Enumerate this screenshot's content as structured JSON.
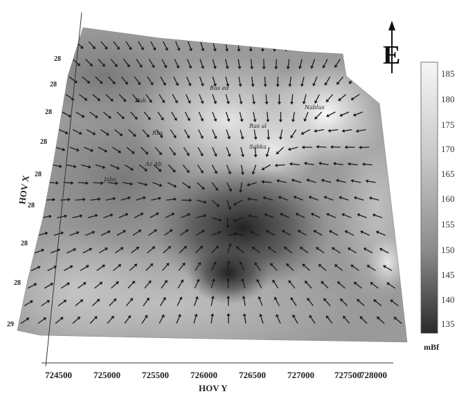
{
  "map": {
    "x_axis": {
      "title": "HOV Y",
      "ticks": [
        "724500",
        "725000",
        "725500",
        "726000",
        "726500",
        "727000",
        "727500",
        "728000"
      ]
    },
    "y_axis": {
      "title": "HOV X",
      "ticks": [
        "29",
        "28",
        "28",
        "28",
        "28",
        "28",
        "28",
        "28",
        "28"
      ]
    },
    "north_arrow": {
      "letter": "E",
      "icon": "north-arrow-icon"
    },
    "colorbar": {
      "unit": "mBf",
      "ticks": [
        "185",
        "180",
        "175",
        "170",
        "165",
        "160",
        "155",
        "150",
        "145",
        "140",
        "135"
      ],
      "min": 133,
      "max": 187,
      "colors": {
        "high": "#f4f4f4",
        "low": "#2a2a2a"
      }
    },
    "basemap": {
      "highs": [
        {
          "x": 727450,
          "v": 186
        },
        {
          "x": 726350,
          "v": 182
        }
      ],
      "lows": [
        {
          "x": 726400,
          "v": 134
        }
      ]
    },
    "place_labels": [
      "Bab",
      "Bus ed",
      "Nablus",
      "Ras al",
      "Ras",
      "Sabka",
      "Az Ab",
      "Jaba"
    ]
  }
}
